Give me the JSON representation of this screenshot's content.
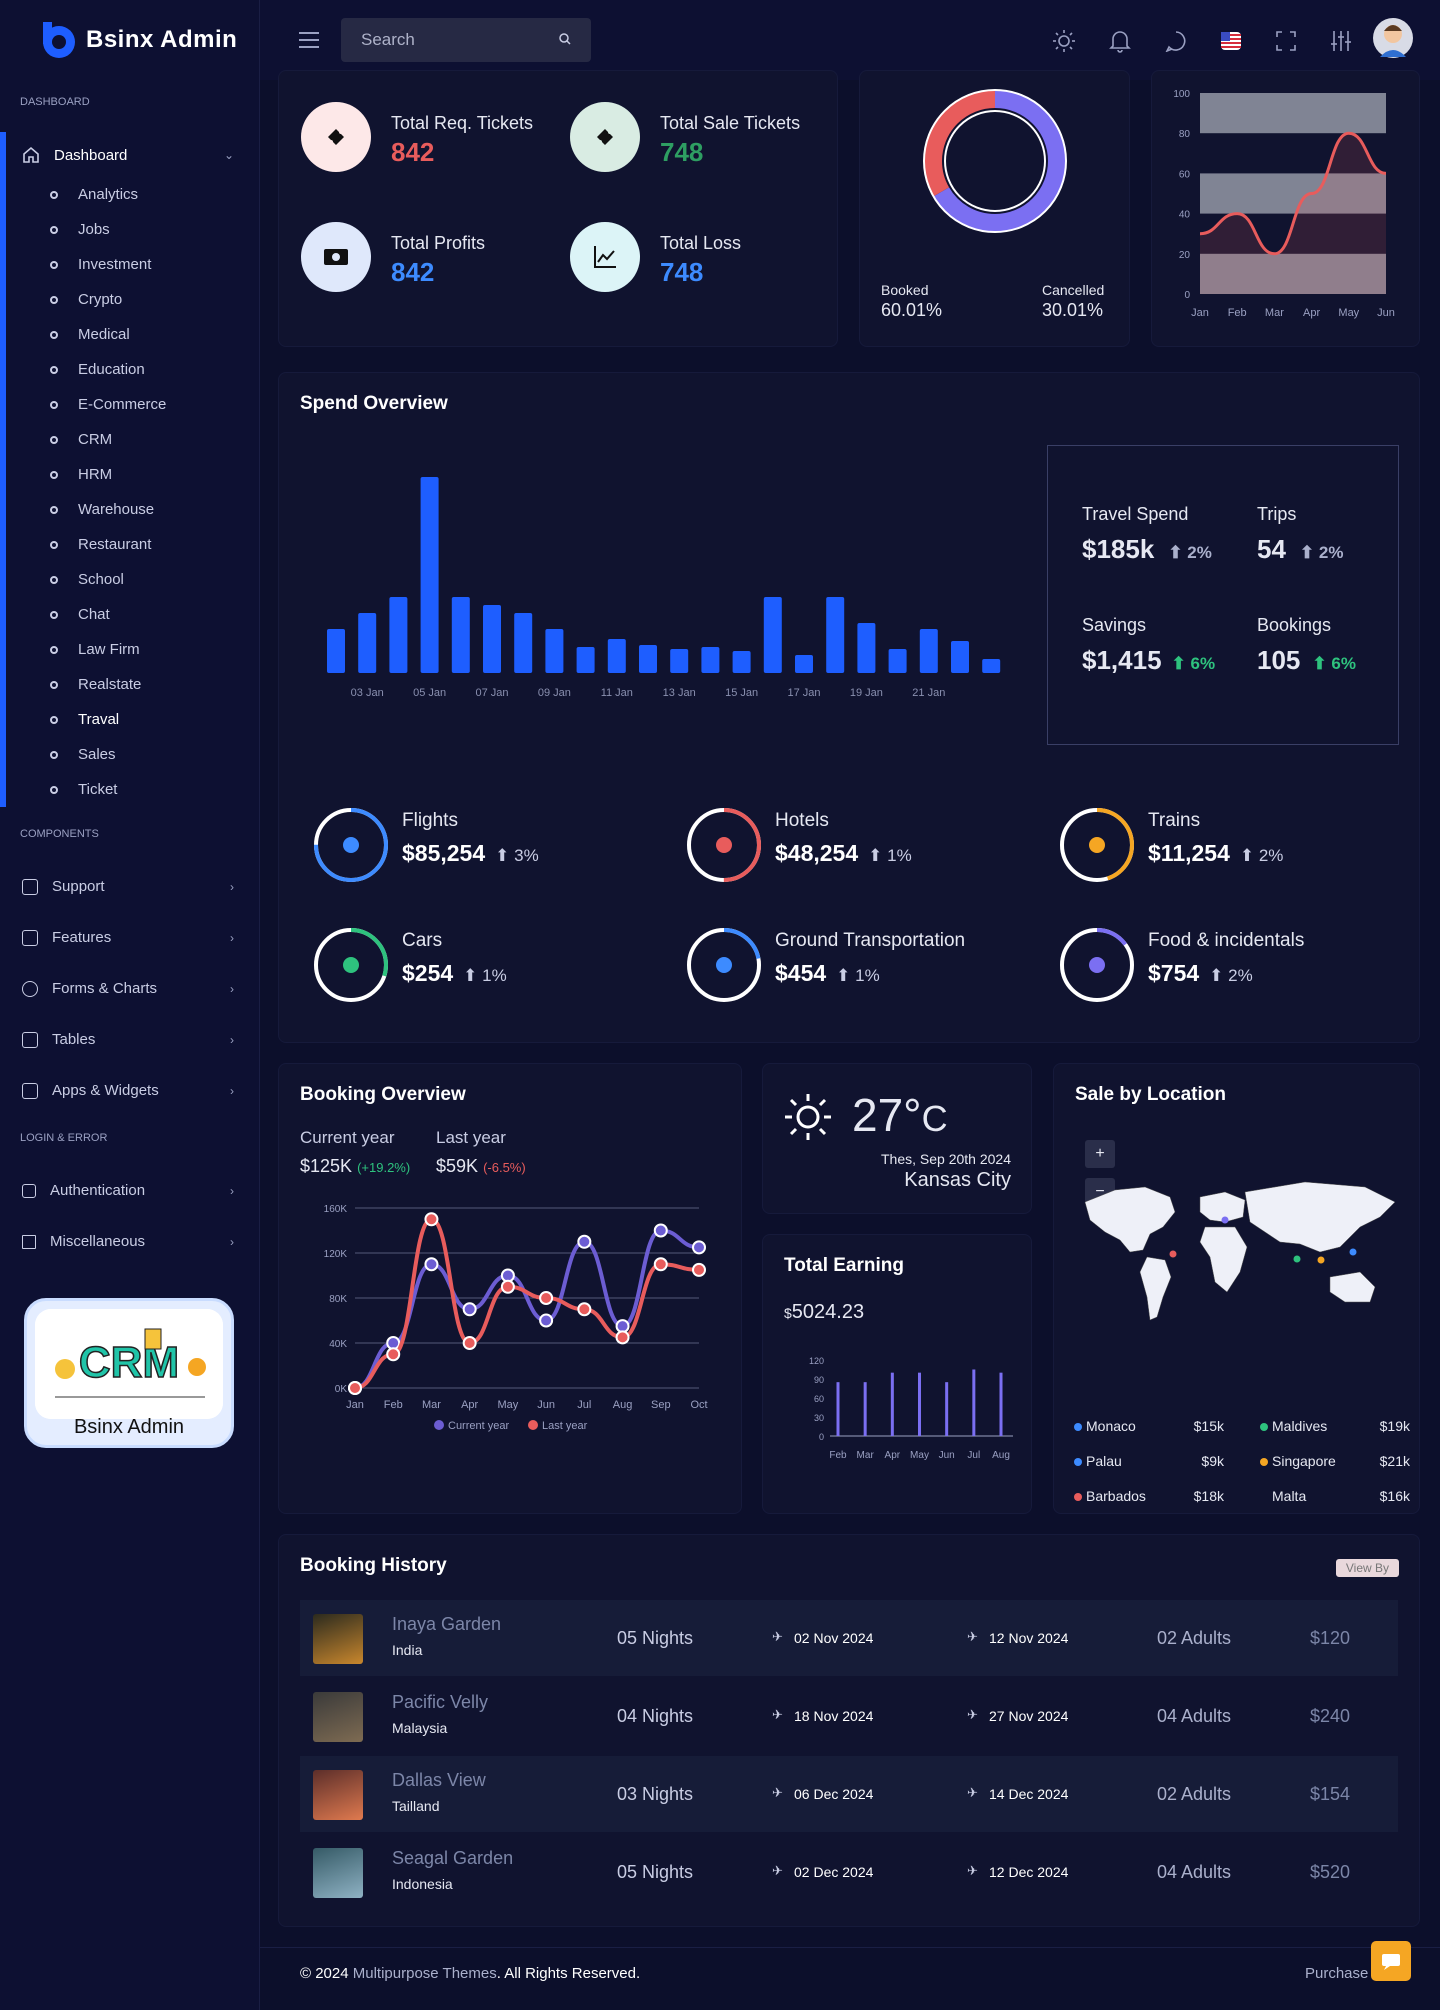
{
  "brand": {
    "name": "Bsinx Admin"
  },
  "topbar": {
    "search_placeholder": "Search"
  },
  "sidebar": {
    "section_dashboard": "DASHBOARD",
    "section_components": "COMPONENTS",
    "section_login": "LOGIN & ERROR",
    "dashboard_label": "Dashboard",
    "sub_items": [
      "Analytics",
      "Jobs",
      "Investment",
      "Crypto",
      "Medical",
      "Education",
      "E-Commerce",
      "CRM",
      "HRM",
      "Warehouse",
      "Restaurant",
      "School",
      "Chat",
      "Law Firm",
      "Realstate",
      "Traval",
      "Sales",
      "Ticket"
    ],
    "active_sub": "Traval",
    "components": [
      "Support",
      "Features",
      "Forms & Charts",
      "Tables",
      "Apps & Widgets"
    ],
    "login": [
      "Authentication",
      "Miscellaneous"
    ],
    "promo_label": "Bsinx Admin"
  },
  "tickets": {
    "req_label": "Total Req. Tickets",
    "req_value": "842",
    "sale_label": "Total Sale Tickets",
    "sale_value": "748",
    "profit_label": "Total Profits",
    "profit_value": "842",
    "loss_label": "Total Loss",
    "loss_value": "748"
  },
  "donut": {
    "booked_label": "Booked",
    "booked_value": "60.01%",
    "cancelled_label": "Cancelled",
    "cancelled_value": "30.01%"
  },
  "spend": {
    "title": "Spend Overview",
    "travel_label": "Travel Spend",
    "travel_value": "$185k",
    "travel_pct": "2%",
    "trips_label": "Trips",
    "trips_value": "54",
    "trips_pct": "2%",
    "savings_label": "Savings",
    "savings_value": "$1,415",
    "savings_pct": "6%",
    "bookings_label": "Bookings",
    "bookings_value": "105",
    "bookings_pct": "6%",
    "categories": [
      {
        "name": "Flights",
        "value": "$85,254",
        "pct": "3%",
        "color": "#3d8bff",
        "fill": 0.75
      },
      {
        "name": "Hotels",
        "value": "$48,254",
        "pct": "1%",
        "color": "#e85c5c",
        "fill": 0.5
      },
      {
        "name": "Trains",
        "value": "$11,254",
        "pct": "2%",
        "color": "#f5a623",
        "fill": 0.45
      },
      {
        "name": "Cars",
        "value": "$254",
        "pct": "1%",
        "color": "#2ec27e",
        "fill": 0.3
      },
      {
        "name": "Ground Transportation",
        "value": "$454",
        "pct": "1%",
        "color": "#3d8bff",
        "fill": 0.22
      },
      {
        "name": "Food & incidentals",
        "value": "$754",
        "pct": "2%",
        "color": "#7b6ff2",
        "fill": 0.15
      }
    ]
  },
  "booking_overview": {
    "title": "Booking Overview",
    "current_label": "Current year",
    "current_value": "$125K",
    "current_change": "(+19.2%)",
    "last_label": "Last year",
    "last_value": "$59K",
    "last_change": "(-6.5%)"
  },
  "weather": {
    "temp": "27°",
    "unit": "C",
    "date": "Thes, Sep 20th 2024",
    "city": "Kansas City"
  },
  "earning": {
    "title": "Total Earning",
    "currency": "$",
    "value": "5024.23"
  },
  "location": {
    "title": "Sale by Location",
    "zoom_in": "+",
    "zoom_out": "−",
    "rows": [
      {
        "name": "Monaco",
        "value": "$15k",
        "color": "#3d8bff"
      },
      {
        "name": "Maldives",
        "value": "$19k",
        "color": "#2ec27e"
      },
      {
        "name": "Palau",
        "value": "$9k",
        "color": "#3d8bff"
      },
      {
        "name": "Singapore",
        "value": "$21k",
        "color": "#f5a623"
      },
      {
        "name": "Barbados",
        "value": "$18k",
        "color": "#e85c5c"
      },
      {
        "name": "Malta",
        "value": "$16k",
        "color": ""
      }
    ]
  },
  "history": {
    "title": "Booking History",
    "view_by": "View By",
    "rows": [
      {
        "place": "Inaya Garden",
        "country": "India",
        "nights": "05 Nights",
        "from": "02 Nov 2024",
        "to": "12 Nov 2024",
        "adults": "02 Adults",
        "price": "$120"
      },
      {
        "place": "Pacific Velly",
        "country": "Malaysia",
        "nights": "04 Nights",
        "from": "18 Nov 2024",
        "to": "27 Nov 2024",
        "adults": "04 Adults",
        "price": "$240"
      },
      {
        "place": "Dallas View",
        "country": "Tailland",
        "nights": "03 Nights",
        "from": "06 Dec 2024",
        "to": "14 Dec 2024",
        "adults": "02 Adults",
        "price": "$154"
      },
      {
        "place": "Seagal Garden",
        "country": "Indonesia",
        "nights": "05 Nights",
        "from": "02 Dec 2024",
        "to": "12 Dec 2024",
        "adults": "04 Adults",
        "price": "$520"
      }
    ]
  },
  "footer": {
    "year_text": "© 2024",
    "company": "Multipurpose Themes",
    "rights": ". All Rights Reserved.",
    "purchase": "Purchase Now"
  },
  "chart_data": [
    {
      "type": "bar",
      "title": "",
      "categories": [
        "",
        "03 Jan",
        "",
        "05 Jan",
        "",
        "07 Jan",
        "",
        "09 Jan",
        "",
        "11 Jan",
        "",
        "13 Jan",
        "",
        "15 Jan",
        "",
        "17 Jan",
        "",
        "19 Jan",
        "",
        "21 Jan",
        "",
        ""
      ],
      "values": [
        22,
        30,
        38,
        98,
        38,
        34,
        30,
        22,
        13,
        17,
        14,
        12,
        13,
        11,
        38,
        9,
        38,
        25,
        12,
        22,
        16,
        7
      ],
      "color": "#1e5eff",
      "ylim": [
        0,
        100
      ]
    },
    {
      "type": "area",
      "x": [
        "Jan",
        "Feb",
        "Mar",
        "Apr",
        "May",
        "Jun"
      ],
      "yticks": [
        0,
        20,
        40,
        60,
        80,
        100
      ],
      "ylim": [
        0,
        100
      ],
      "values": [
        30,
        40,
        20,
        50,
        80,
        60
      ],
      "color": "#e85c5c"
    },
    {
      "type": "pie",
      "series": [
        {
          "name": "Booked",
          "value": 60.01,
          "color": "#7b6ff2"
        },
        {
          "name": "Cancelled",
          "value": 30.01,
          "color": "#e85c5c"
        }
      ]
    },
    {
      "type": "line",
      "x": [
        "Jan",
        "Feb",
        "Mar",
        "Apr",
        "May",
        "Jun",
        "Jul",
        "Aug",
        "Sep",
        "Oct"
      ],
      "yticks": [
        "0K",
        "40K",
        "80K",
        "120K",
        "160K"
      ],
      "ylim": [
        0,
        160
      ],
      "series": [
        {
          "name": "Current year",
          "color": "#6c5dd3",
          "values": [
            0,
            40,
            110,
            70,
            100,
            60,
            130,
            55,
            140,
            125
          ]
        },
        {
          "name": "Last year",
          "color": "#e85c5c",
          "values": [
            0,
            30,
            150,
            40,
            90,
            80,
            70,
            45,
            110,
            105
          ]
        }
      ]
    },
    {
      "type": "bar",
      "x": [
        "Feb",
        "Mar",
        "Apr",
        "May",
        "Jun",
        "Jul",
        "Aug"
      ],
      "yticks": [
        0,
        30,
        60,
        90,
        120
      ],
      "ylim": [
        0,
        120
      ],
      "values": [
        85,
        85,
        100,
        100,
        85,
        105,
        100
      ],
      "color": "#7b6ff2"
    }
  ]
}
